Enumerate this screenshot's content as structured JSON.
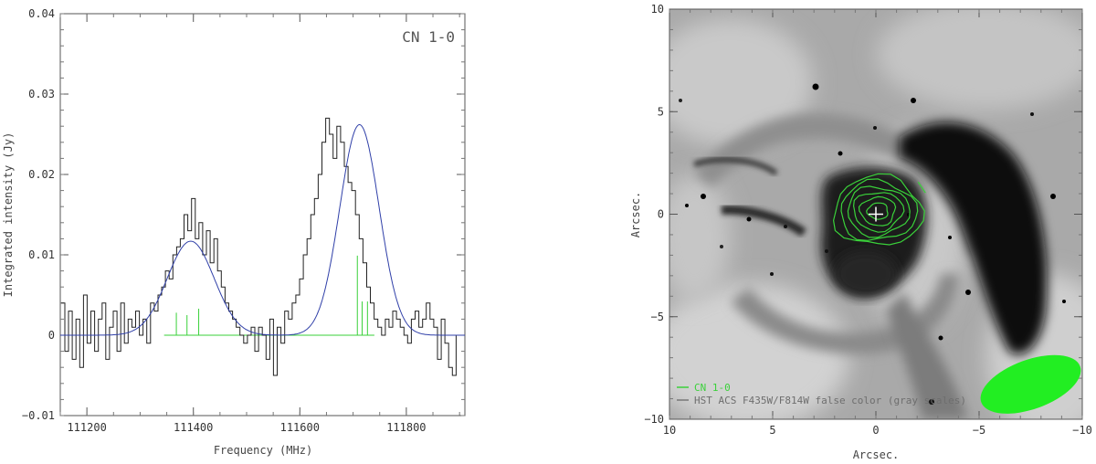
{
  "chart_data": [
    {
      "type": "line",
      "panel": "spectrum",
      "title": "CN 1-0",
      "xlabel": "Frequency (MHz)",
      "ylabel": "Integrated intensity (Jy)",
      "xlim": [
        111150,
        111910
      ],
      "ylim": [
        -0.01,
        0.04
      ],
      "xticks": [
        111200,
        111400,
        111600,
        111800
      ],
      "yticks": [
        -0.01,
        0,
        0.01,
        0.02,
        0.03,
        0.04
      ],
      "ytick_labels": [
        "−0.01",
        "0",
        "0.01",
        "0.02",
        "0.03",
        "0.04"
      ],
      "grid": false,
      "series": [
        {
          "kind": "histogram",
          "color": "#222222",
          "x": [
            111155,
            111162,
            111169,
            111176,
            111183,
            111190,
            111197,
            111204,
            111211,
            111218,
            111225,
            111232,
            111239,
            111246,
            111253,
            111260,
            111267,
            111274,
            111281,
            111288,
            111295,
            111302,
            111309,
            111316,
            111323,
            111330,
            111337,
            111344,
            111351,
            111358,
            111365,
            111372,
            111379,
            111386,
            111393,
            111400,
            111407,
            111414,
            111421,
            111428,
            111435,
            111442,
            111449,
            111456,
            111463,
            111470,
            111477,
            111484,
            111491,
            111498,
            111505,
            111512,
            111519,
            111526,
            111533,
            111540,
            111547,
            111554,
            111561,
            111568,
            111575,
            111582,
            111589,
            111596,
            111603,
            111610,
            111617,
            111624,
            111631,
            111638,
            111645,
            111652,
            111659,
            111666,
            111673,
            111680,
            111687,
            111694,
            111701,
            111708,
            111715,
            111722,
            111729,
            111736,
            111743,
            111750,
            111757,
            111764,
            111771,
            111778,
            111785,
            111792,
            111799,
            111806,
            111813,
            111820,
            111827,
            111834,
            111841,
            111848,
            111855,
            111862,
            111869,
            111876,
            111883,
            111890,
            111897
          ],
          "y": [
            0.004,
            -0.002,
            0.003,
            -0.003,
            0.002,
            -0.004,
            0.005,
            -0.001,
            0.003,
            -0.002,
            0.002,
            0.004,
            -0.003,
            0.001,
            0.003,
            -0.002,
            0.004,
            -0.001,
            0.002,
            0.001,
            0.003,
            0.0,
            0.002,
            -0.001,
            0.004,
            0.003,
            0.005,
            0.006,
            0.008,
            0.007,
            0.01,
            0.011,
            0.012,
            0.015,
            0.013,
            0.017,
            0.012,
            0.014,
            0.01,
            0.013,
            0.009,
            0.012,
            0.008,
            0.006,
            0.004,
            0.003,
            0.002,
            0.001,
            0.0,
            -0.001,
            0.0,
            0.001,
            -0.002,
            0.001,
            0.0,
            -0.003,
            0.002,
            -0.005,
            0.001,
            -0.001,
            0.003,
            0.002,
            0.004,
            0.005,
            0.007,
            0.01,
            0.012,
            0.015,
            0.017,
            0.02,
            0.024,
            0.027,
            0.025,
            0.022,
            0.026,
            0.024,
            0.021,
            0.019,
            0.018,
            0.015,
            0.012,
            0.009,
            0.006,
            0.004,
            0.002,
            0.001,
            0.0,
            0.002,
            0.001,
            0.003,
            0.002,
            0.001,
            0.0,
            -0.001,
            0.002,
            0.003,
            0.001,
            0.002,
            0.004,
            0.002,
            0.001,
            -0.003,
            0.002,
            -0.001,
            -0.004,
            -0.005,
            0.0
          ]
        },
        {
          "kind": "fit",
          "color": "#2f3fa8",
          "baseline": 0.0,
          "components": [
            {
              "center": 111395,
              "amplitude": 0.0117,
              "sigma": 44
            },
            {
              "center": 111712,
              "amplitude": 0.0262,
              "sigma": 37
            }
          ]
        },
        {
          "kind": "hyperfine_lines",
          "color": "#3ad13a",
          "baseline_x": [
            111345,
            111740
          ],
          "x": [
            111368,
            111388,
            111410,
            111708,
            111717,
            111727
          ],
          "heights": [
            0.0028,
            0.0025,
            0.0033,
            0.0099,
            0.0042,
            0.0042
          ]
        }
      ]
    },
    {
      "type": "image",
      "panel": "map",
      "xlabel": "Arcsec.",
      "ylabel": "Arcsec.",
      "xlim": [
        10,
        -10
      ],
      "ylim": [
        -10,
        10
      ],
      "xticks": [
        10,
        5,
        0,
        -5,
        -10
      ],
      "yticks": [
        -10,
        -5,
        0,
        5,
        10
      ],
      "xtick_labels": [
        "10",
        "5",
        "0",
        "−5",
        "−10"
      ],
      "ytick_labels": [
        "−10",
        "−5",
        "0",
        "5",
        "10"
      ],
      "cross_center": [
        0,
        0
      ],
      "contours": {
        "color": "#3ad13a",
        "center": [
          -0.1,
          0.15
        ],
        "rx": [
          2.15,
          1.85,
          1.5,
          1.2,
          0.85,
          0.5
        ],
        "ry": [
          1.7,
          1.45,
          1.2,
          0.95,
          0.7,
          0.4
        ]
      },
      "beam": {
        "color": "#22ee22",
        "center": [
          -7.5,
          -8.3
        ],
        "major_axis": 5.1,
        "minor_axis": 2.4,
        "position_angle_deg": 70
      },
      "legend": {
        "placement": "bottom-left",
        "entries": [
          {
            "label": "CN 1-0",
            "color": "#3ad13a"
          },
          {
            "label": "HST ACS F435W/F814W false color (gray scales)",
            "color": "#777777"
          }
        ]
      }
    }
  ]
}
